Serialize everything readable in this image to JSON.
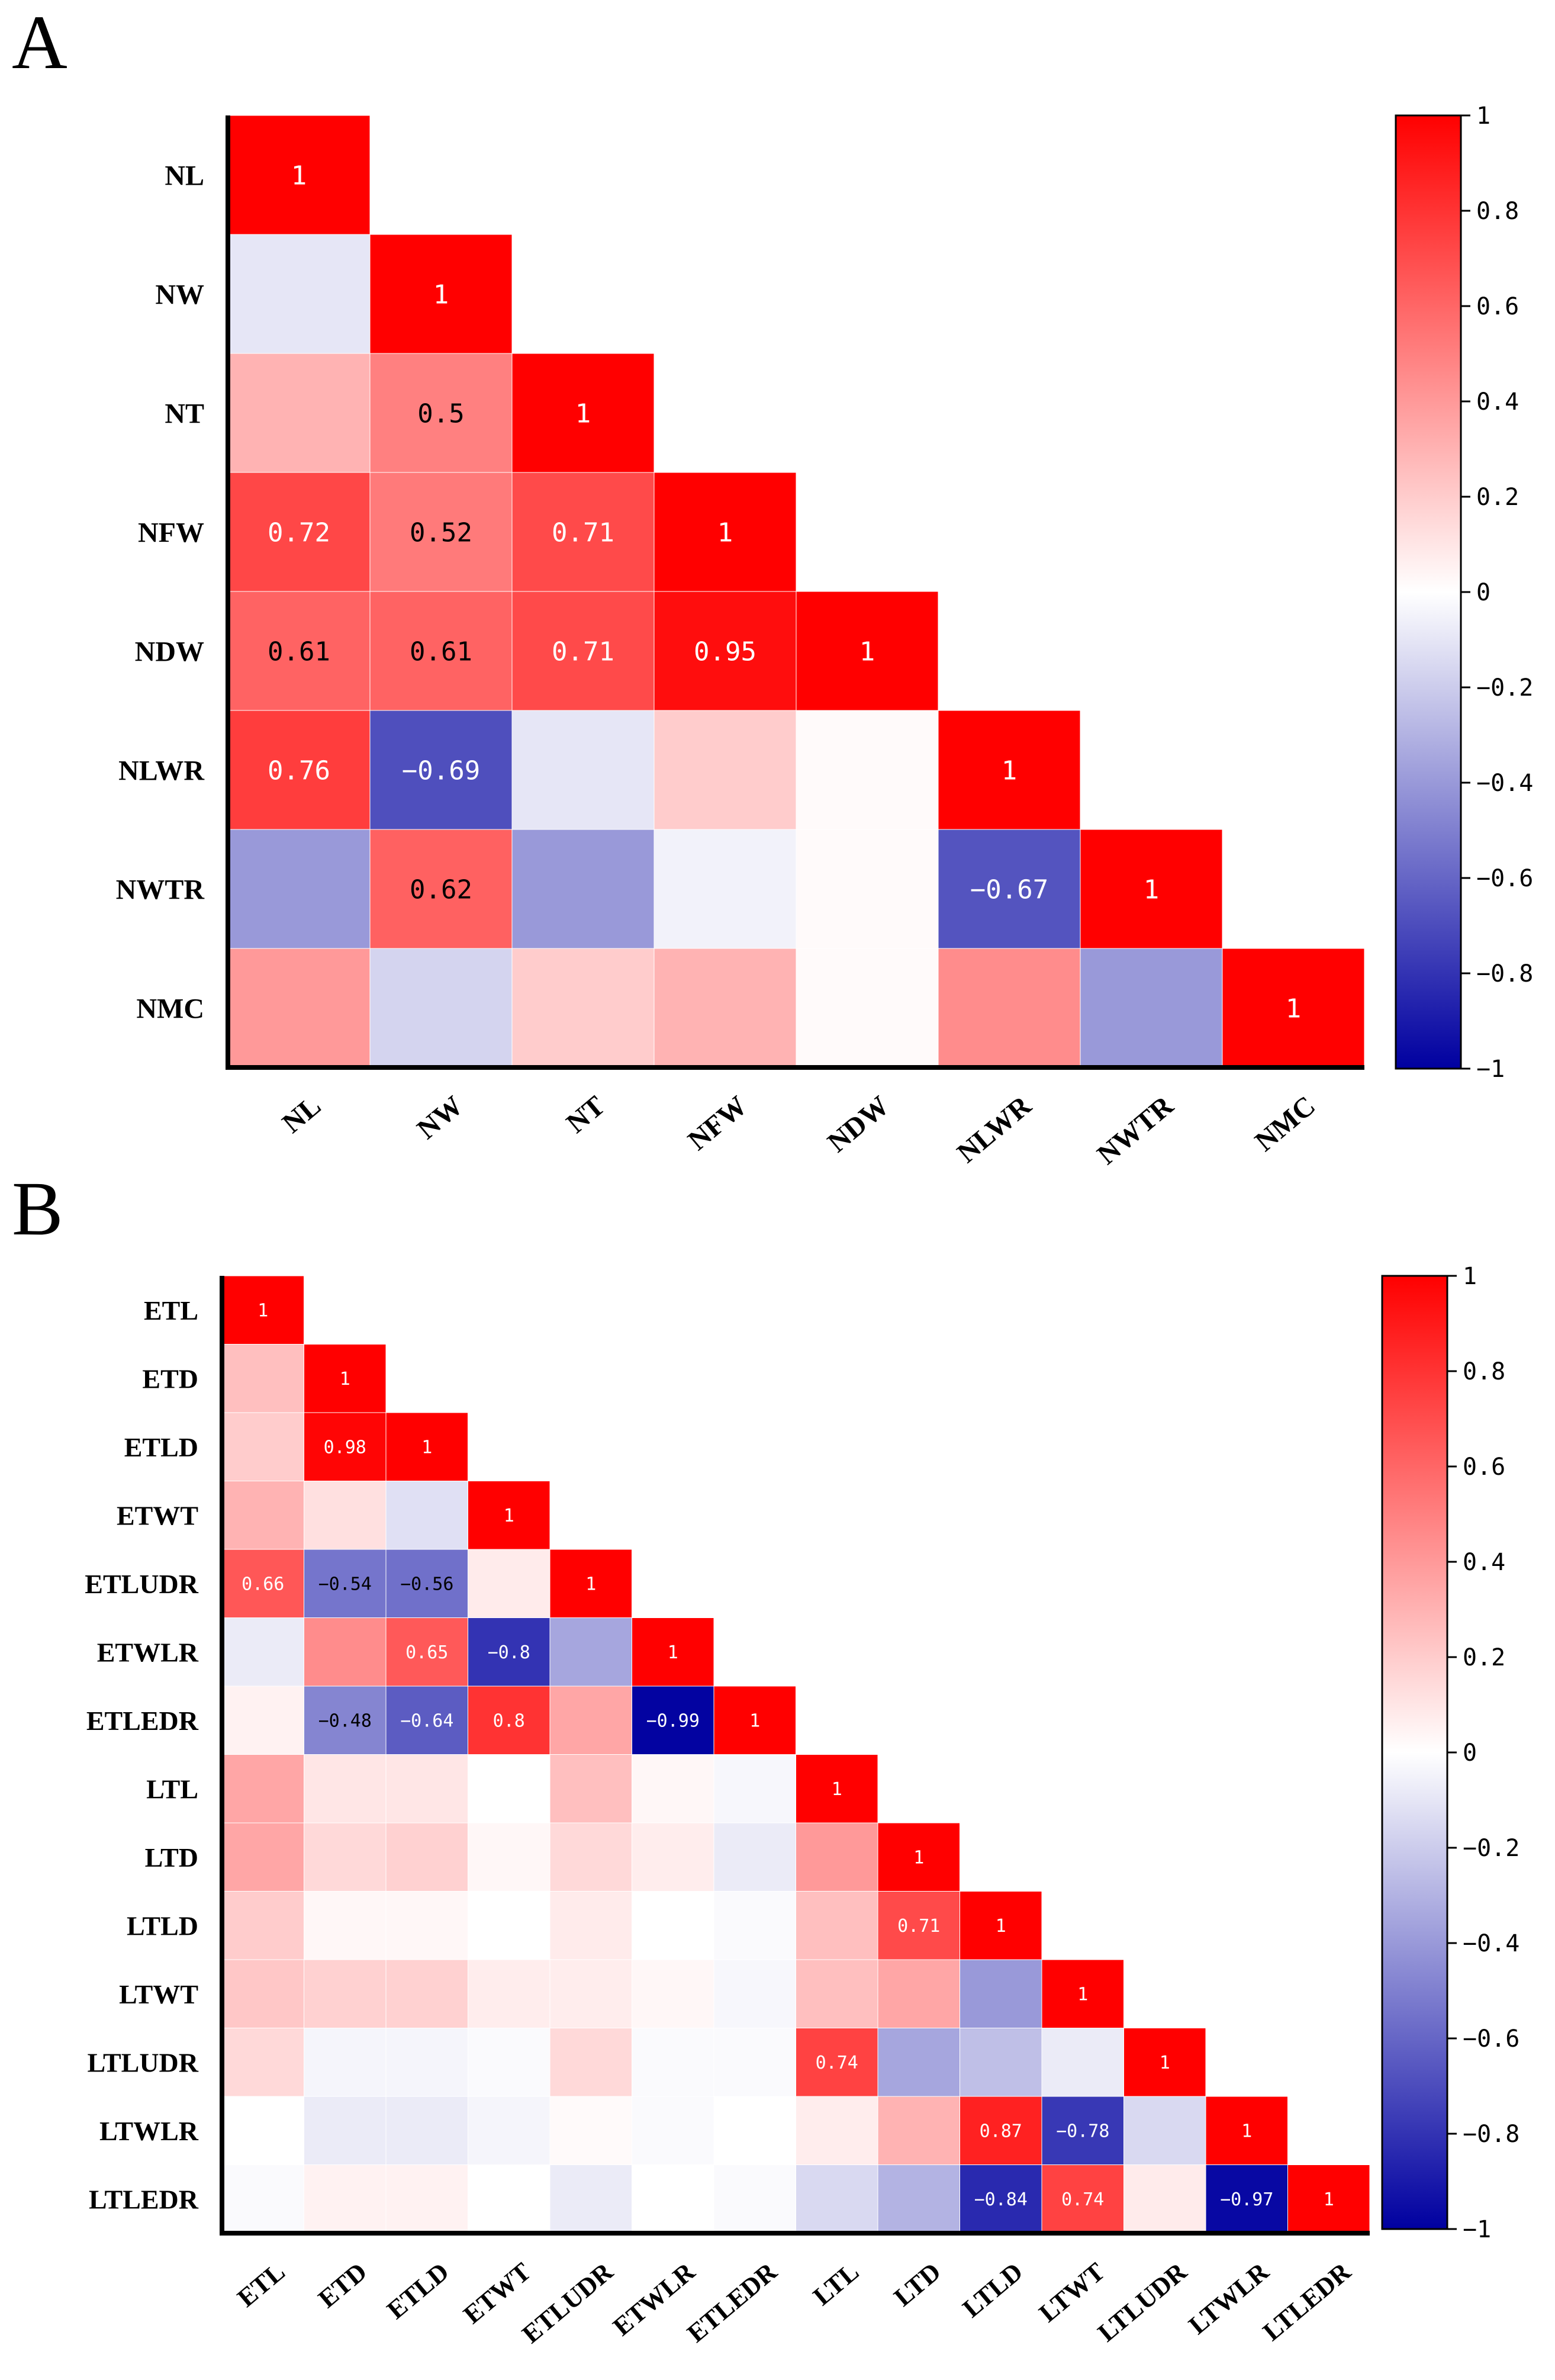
{
  "chart_data": [
    {
      "type": "heatmap",
      "panel_label": "A",
      "title": "",
      "layout": "lower-triangle",
      "variables": [
        "NL",
        "NW",
        "NT",
        "NFW",
        "NDW",
        "NLWR",
        "NWTR",
        "NMC"
      ],
      "matrix": [
        [
          1
        ],
        [
          -0.1,
          1
        ],
        [
          0.3,
          0.5,
          1
        ],
        [
          0.72,
          0.52,
          0.71,
          1
        ],
        [
          0.61,
          0.61,
          0.71,
          0.95,
          1
        ],
        [
          0.76,
          -0.69,
          -0.1,
          0.2,
          0.02,
          1
        ],
        [
          -0.4,
          0.62,
          -0.4,
          -0.05,
          0.02,
          -0.67,
          1
        ],
        [
          0.4,
          -0.17,
          0.2,
          0.3,
          0.02,
          0.45,
          -0.4,
          1
        ]
      ],
      "labels": [
        [
          "1"
        ],
        [
          "",
          "1"
        ],
        [
          "",
          "0.5",
          "1"
        ],
        [
          "0.72",
          "0.52",
          "0.71",
          "1"
        ],
        [
          "0.61",
          "0.61",
          "0.71",
          "0.95",
          "1"
        ],
        [
          "0.76",
          "−0.69",
          "",
          "",
          "",
          "1"
        ],
        [
          "",
          "0.62",
          "",
          "",
          "",
          "−0.67",
          "1"
        ],
        [
          "",
          "",
          "",
          "",
          "",
          "",
          "",
          "1"
        ]
      ],
      "colorbar": {
        "range": [
          -1,
          1
        ],
        "ticks": [
          1,
          0.8,
          0.6,
          0.4,
          0.2,
          0,
          -0.2,
          -0.4,
          -0.6,
          -0.8,
          -1
        ],
        "tick_labels": [
          "1",
          "0.8",
          "0.6",
          "0.4",
          "0.2",
          "0",
          "−0.2",
          "−0.4",
          "−0.6",
          "−0.8",
          "−1"
        ],
        "colors": {
          "negative": "#0000a0",
          "zero": "#ffffff",
          "positive": "#ff0000"
        }
      }
    },
    {
      "type": "heatmap",
      "panel_label": "B",
      "title": "",
      "layout": "lower-triangle",
      "variables": [
        "ETL",
        "ETD",
        "ETLD",
        "ETWT",
        "ETLUDR",
        "ETWLR",
        "ETLEDR",
        "LTL",
        "LTD",
        "LTLD",
        "LTWT",
        "LTLUDR",
        "LTWLR",
        "LTLEDR"
      ],
      "matrix": [
        [
          1
        ],
        [
          0.25,
          1
        ],
        [
          0.2,
          0.98,
          1
        ],
        [
          0.3,
          0.12,
          -0.12,
          1
        ],
        [
          0.66,
          -0.54,
          -0.56,
          0.08,
          1
        ],
        [
          -0.08,
          0.45,
          0.65,
          -0.8,
          -0.35,
          1
        ],
        [
          0.05,
          -0.48,
          -0.64,
          0.8,
          0.35,
          -0.99,
          1
        ],
        [
          0.35,
          0.1,
          0.1,
          0.0,
          0.25,
          0.03,
          -0.03,
          1
        ],
        [
          0.35,
          0.15,
          0.18,
          0.03,
          0.15,
          0.07,
          -0.08,
          0.4,
          1
        ],
        [
          0.2,
          0.03,
          0.03,
          0.0,
          0.08,
          0.0,
          -0.02,
          0.25,
          0.71,
          1
        ],
        [
          0.22,
          0.18,
          0.18,
          0.07,
          0.07,
          0.03,
          -0.03,
          0.25,
          0.35,
          -0.4,
          1
        ],
        [
          0.15,
          -0.04,
          -0.04,
          -0.02,
          0.15,
          -0.02,
          -0.02,
          0.74,
          -0.35,
          -0.25,
          -0.08,
          1
        ],
        [
          0.0,
          -0.08,
          -0.08,
          -0.04,
          0.02,
          -0.02,
          0.0,
          0.07,
          0.3,
          0.87,
          -0.78,
          -0.15,
          1
        ],
        [
          -0.02,
          0.05,
          0.05,
          0.0,
          -0.08,
          0.0,
          -0.02,
          -0.15,
          -0.3,
          -0.84,
          0.74,
          0.08,
          -0.97,
          1
        ]
      ],
      "labels": [
        [
          "1"
        ],
        [
          "",
          "1"
        ],
        [
          "",
          "0.98",
          "1"
        ],
        [
          "",
          "",
          "",
          "1"
        ],
        [
          "0.66",
          "−0.54",
          "−0.56",
          "",
          "1"
        ],
        [
          "",
          "",
          "0.65",
          "−0.8",
          "",
          "1"
        ],
        [
          "",
          "−0.48",
          "−0.64",
          "0.8",
          "",
          "−0.99",
          "1"
        ],
        [
          "",
          "",
          "",
          "",
          "",
          "",
          "",
          "1"
        ],
        [
          "",
          "",
          "",
          "",
          "",
          "",
          "",
          "",
          "1"
        ],
        [
          "",
          "",
          "",
          "",
          "",
          "",
          "",
          "",
          "0.71",
          "1"
        ],
        [
          "",
          "",
          "",
          "",
          "",
          "",
          "",
          "",
          "",
          "",
          "1"
        ],
        [
          "",
          "",
          "",
          "",
          "",
          "",
          "",
          "0.74",
          "",
          "",
          "",
          "1"
        ],
        [
          "",
          "",
          "",
          "",
          "",
          "",
          "",
          "",
          "",
          "0.87",
          "−0.78",
          "",
          "1"
        ],
        [
          "",
          "",
          "",
          "",
          "",
          "",
          "",
          "",
          "",
          "−0.84",
          "0.74",
          "",
          "−0.97",
          "1"
        ]
      ],
      "colorbar": {
        "range": [
          -1,
          1
        ],
        "ticks": [
          1,
          0.8,
          0.6,
          0.4,
          0.2,
          0,
          -0.2,
          -0.4,
          -0.6,
          -0.8,
          -1
        ],
        "tick_labels": [
          "1",
          "0.8",
          "0.6",
          "0.4",
          "0.2",
          "0",
          "−0.2",
          "−0.4",
          "−0.6",
          "−0.8",
          "−1"
        ],
        "colors": {
          "negative": "#0000a0",
          "zero": "#ffffff",
          "positive": "#ff0000"
        }
      }
    }
  ]
}
